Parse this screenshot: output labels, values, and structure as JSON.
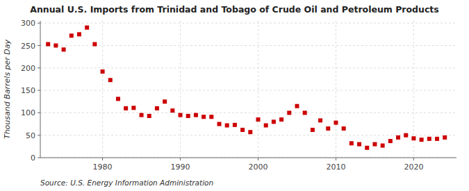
{
  "chart_data": {
    "type": "scatter",
    "title": "Annual U.S. Imports from Trinidad and Tobago of Crude Oil and Petroleum Products",
    "ylabel": "Thousand Barrels per Day",
    "annotations": [
      "Source: U.S. Energy Information Administration"
    ],
    "x": [
      1973,
      1974,
      1975,
      1976,
      1977,
      1978,
      1979,
      1980,
      1981,
      1982,
      1983,
      1984,
      1985,
      1986,
      1987,
      1988,
      1989,
      1990,
      1991,
      1992,
      1993,
      1994,
      1995,
      1996,
      1997,
      1998,
      1999,
      2000,
      2001,
      2002,
      2003,
      2004,
      2005,
      2006,
      2007,
      2008,
      2009,
      2010,
      2011,
      2012,
      2013,
      2014,
      2015,
      2016,
      2017,
      2018,
      2019,
      2020,
      2021,
      2022,
      2023,
      2024
    ],
    "values": [
      253,
      250,
      241,
      272,
      275,
      290,
      253,
      192,
      173,
      131,
      110,
      111,
      95,
      93,
      110,
      125,
      105,
      95,
      93,
      95,
      91,
      91,
      75,
      72,
      73,
      62,
      57,
      85,
      72,
      80,
      85,
      100,
      115,
      100,
      62,
      83,
      65,
      78,
      65,
      32,
      30,
      22,
      30,
      27,
      37,
      45,
      50,
      43,
      40,
      42,
      42,
      45
    ],
    "color": "#cc0000",
    "marker": "square",
    "grid": true,
    "xlim": [
      1972,
      2025.5
    ],
    "xticks": [
      1980,
      1990,
      2000,
      2010,
      2020
    ],
    "ylim": [
      0,
      305
    ],
    "yticks": [
      0,
      50,
      100,
      150,
      200,
      250,
      300
    ]
  }
}
